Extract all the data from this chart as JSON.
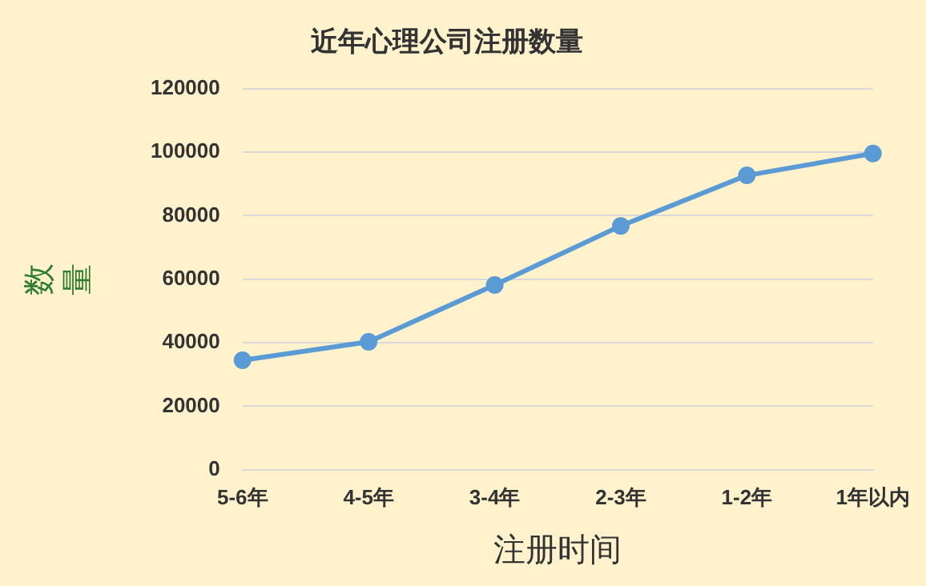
{
  "chart_data": {
    "type": "line",
    "title": "近年心理公司注册数量",
    "xlabel": "注册时间",
    "ylabel": "数量",
    "categories": [
      "5-6年",
      "4-5年",
      "3-4年",
      "2-3年",
      "1-2年",
      "1年以内"
    ],
    "series": [
      {
        "color": "#5b9bd5",
        "values": [
          34500,
          40300,
          58200,
          76800,
          92700,
          99600
        ]
      }
    ],
    "ylim": [
      0,
      120000
    ],
    "yticks": [
      0,
      20000,
      40000,
      60000,
      80000,
      100000,
      120000
    ],
    "grid": "y",
    "legend": false,
    "marker": "circle",
    "line_style": "solid"
  }
}
